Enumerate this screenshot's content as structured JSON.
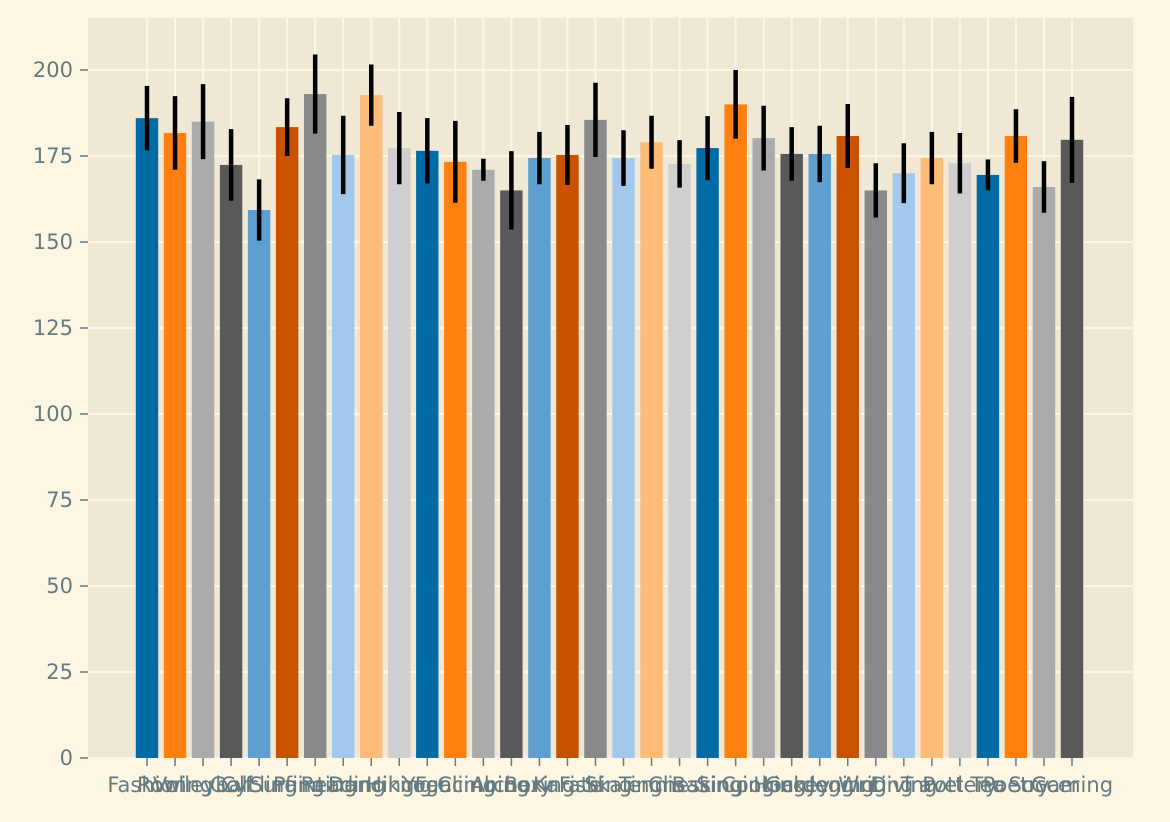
{
  "chart_data": {
    "type": "bar",
    "title": "",
    "xlabel": "",
    "ylabel": "",
    "ylim": [
      0,
      215
    ],
    "yticks": [
      0,
      25,
      50,
      75,
      100,
      125,
      150,
      175,
      200
    ],
    "grid": true,
    "legend": "none",
    "colors": [
      "#006ba4",
      "#ff800e",
      "#ababab",
      "#595959",
      "#5f9ed1",
      "#c85200",
      "#898989",
      "#a2c8ec",
      "#ffbc79",
      "#cfcfcf"
    ],
    "background": "#fdf6e3",
    "plot_background": "#eee8d5",
    "grid_color": "#fdf6e3",
    "text_color": "#657b83",
    "categories": [
      "Fashion",
      "Rowing",
      "Volleyball",
      "Golf",
      "Cycling",
      "Surfing",
      "Painting",
      "Reading",
      "Dancing",
      "Hiking",
      "Yoga",
      "Fencing",
      "Climbing",
      "Archery",
      "Boxing",
      "Karate",
      "Fishing",
      "Skating",
      "Tennis",
      "Chess",
      "Baking",
      "Singing",
      "Cooking",
      "Hockey",
      "Gardening",
      "Jogging",
      "Writing",
      "Diving",
      "Travel",
      "Pottery",
      "Tea",
      "Poetry",
      "Soccer",
      "Gaming"
    ],
    "values": [
      186.0,
      181.7,
      185.0,
      172.4,
      159.3,
      183.4,
      193.0,
      175.3,
      192.7,
      177.3,
      176.5,
      173.3,
      171.0,
      165.0,
      174.4,
      175.3,
      185.5,
      174.4,
      179.0,
      172.7,
      177.3,
      190.0,
      180.2,
      175.6,
      175.6,
      180.8,
      165.0,
      170.0,
      174.4,
      172.9,
      169.5,
      180.8,
      166.0,
      179.7
    ],
    "errors": [
      9.4,
      10.7,
      10.9,
      10.4,
      8.9,
      8.4,
      11.5,
      11.4,
      8.9,
      10.5,
      9.5,
      11.9,
      3.2,
      11.4,
      7.6,
      8.7,
      10.8,
      8.1,
      7.7,
      6.9,
      9.3,
      10.0,
      9.4,
      7.8,
      8.2,
      9.3,
      7.9,
      8.7,
      7.6,
      8.8,
      4.5,
      7.8,
      7.5,
      12.5
    ]
  }
}
